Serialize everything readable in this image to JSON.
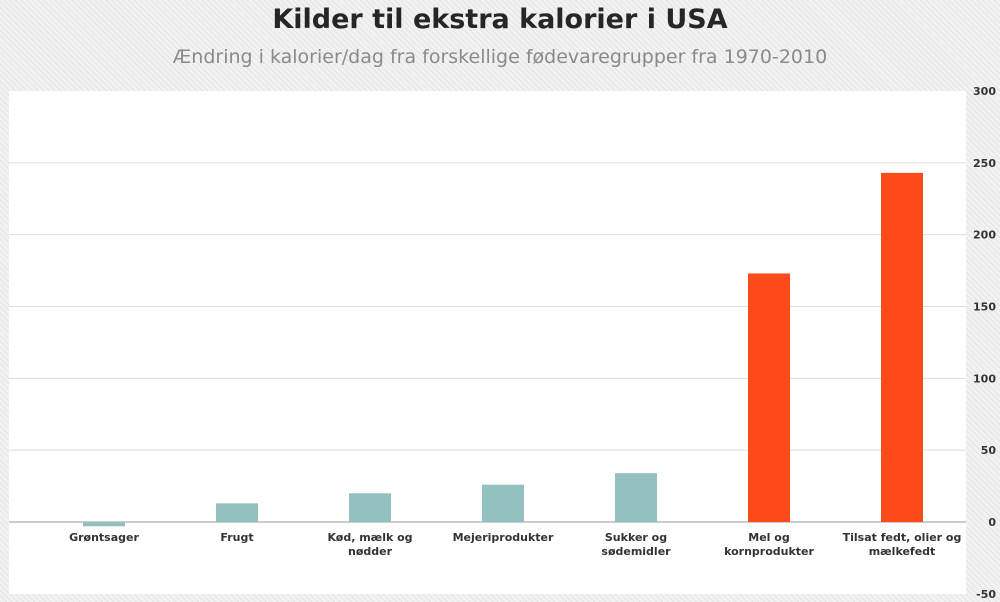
{
  "chart_data": {
    "type": "bar",
    "title": "Kilder til ekstra kalorier i USA",
    "subtitle": "Ændring i kalorier/dag fra forskellige fødevaregrupper fra 1970-2010",
    "categories": [
      [
        "Grøntsager"
      ],
      [
        "Frugt"
      ],
      [
        "Kød, mælk og",
        "nødder"
      ],
      [
        "Mejeriprodukter"
      ],
      [
        "Sukker og",
        "sødemidler"
      ],
      [
        "Mel og",
        "kornprodukter"
      ],
      [
        "Tilsat fedt, olier og",
        "mælkefedt"
      ]
    ],
    "values": [
      -3,
      13,
      20,
      26,
      34,
      173,
      243
    ],
    "ylim": [
      -50,
      300
    ],
    "yticks": [
      -50,
      0,
      50,
      100,
      150,
      200,
      250,
      300
    ],
    "y_axis_side": "right",
    "grid": true,
    "colors": [
      "#93c1bf",
      "#93c1bf",
      "#93c1bf",
      "#93c1bf",
      "#93c1bf",
      "#fc4a1a",
      "#fc4a1a"
    ]
  }
}
